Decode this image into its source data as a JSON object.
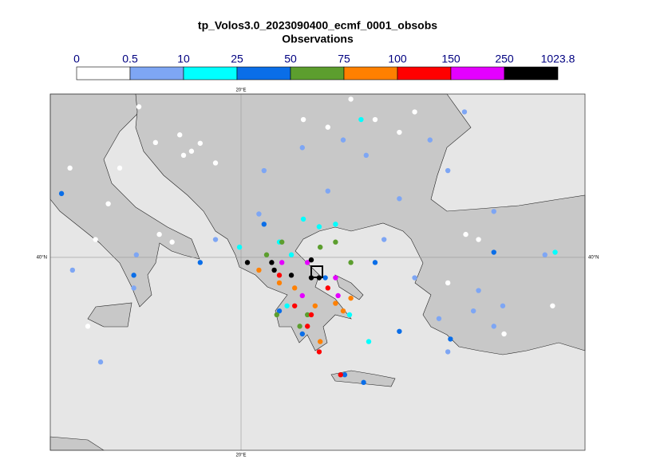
{
  "chart_data": {
    "type": "map",
    "title": "tp_Volos3.0_2023090400_ecmf_0001_obsobs",
    "subtitle": "Observations",
    "levels": [
      0,
      0.5,
      10,
      25,
      50,
      75,
      100,
      150,
      250,
      1023.8
    ],
    "colors": [
      "#ffffff",
      "#7ea6f4",
      "#00ffff",
      "#0a6ee8",
      "#5c9e2e",
      "#ff8000",
      "#ff0000",
      "#e400ff",
      "#000000"
    ],
    "xlim": [
      12.53,
      33.47
    ],
    "ylim": [
      32.44,
      46.4
    ],
    "xticks": [
      {
        "value": 20,
        "label": "20°E"
      }
    ],
    "yticks": [
      {
        "value": 40,
        "label": "40°N"
      }
    ],
    "grid": true,
    "stations": {
      "lon": [
        17.6,
        18.06,
        17.75,
        18.4,
        19.0,
        22.44,
        23.4,
        25.25,
        26.2,
        24.3,
        26.8,
        16.0,
        15.25,
        16.8,
        17.3,
        14.8,
        14.3,
        32.2,
        28.1,
        29.3,
        28.8,
        30.3,
        14.0,
        13.3,
        16.65,
        20.9,
        23.4,
        24.9,
        26.2,
        27.4,
        28.1,
        29.9,
        31.9,
        26.8,
        27.75,
        29.3,
        29.1,
        30.25,
        28.1,
        29.9,
        15.8,
        14.5,
        15.9,
        13.4,
        24.0,
        22.4,
        20.7,
        19.0,
        25.6,
        28.75,
        22.44,
        23.06,
        23.7,
        21.5,
        21.97,
        19.94,
        25.0,
        32.3,
        24.7,
        24.25,
        23.9,
        21.8,
        12.97,
        15.8,
        18.4,
        29.9,
        26.2,
        28.2,
        25.25,
        21.5,
        22.4,
        24.06,
        24.8,
        23.3,
        20.9,
        23.7,
        23.1,
        21.6,
        22.6,
        22.3,
        21.4,
        21.0,
        24.3,
        20.7,
        21.5,
        22.9,
        23.7,
        24.0,
        23.1,
        24.3,
        22.1,
        22.1,
        22.75,
        22.6,
        23.06,
        23.4,
        21.5,
        23.9,
        21.6,
        22.6,
        23.7,
        23.8,
        22.4,
        21.2,
        21.3,
        21.97,
        22.75,
        23.06,
        22.75,
        20.25
      ],
      "lat": [
        44.8,
        44.16,
        44.0,
        44.47,
        43.7,
        45.4,
        45.1,
        45.4,
        44.9,
        46.2,
        45.7,
        45.9,
        43.5,
        40.9,
        40.6,
        42.1,
        40.7,
        38.1,
        39.0,
        40.7,
        40.9,
        37.0,
        37.3,
        43.5,
        44.5,
        43.4,
        42.6,
        44.0,
        42.3,
        44.6,
        43.4,
        41.8,
        40.1,
        39.2,
        37.6,
        38.7,
        37.9,
        38.1,
        36.3,
        37.3,
        38.8,
        35.9,
        40.1,
        39.5,
        44.6,
        44.3,
        41.7,
        40.7,
        40.7,
        45.7,
        41.5,
        41.2,
        41.3,
        40.6,
        40.1,
        40.4,
        36.7,
        40.2,
        45.4,
        37.75,
        35.4,
        38.1,
        42.5,
        39.3,
        39.8,
        40.2,
        37.1,
        36.8,
        39.8,
        37.9,
        37.0,
        35.4,
        35.1,
        39.2,
        41.3,
        40.6,
        40.4,
        40.6,
        37.75,
        37.3,
        37.75,
        40.1,
        39.8,
        39.5,
        39.0,
        38.1,
        38.2,
        37.9,
        36.7,
        38.4,
        38.8,
        38.1,
        37.75,
        37.3,
        36.3,
        38.8,
        39.3,
        35.4,
        39.8,
        39.8,
        39.2,
        38.5,
        38.5,
        39.8,
        39.5,
        39.3,
        39.9,
        39.2,
        39.2,
        39.8
      ],
      "values": [
        0.2,
        0.2,
        0.2,
        0.2,
        0.2,
        0.2,
        0.2,
        0.2,
        0.2,
        0.2,
        0.2,
        0.2,
        0.2,
        0.2,
        0.2,
        0.2,
        0.2,
        0.2,
        0.2,
        0.2,
        0.2,
        0.2,
        0.2,
        0.2,
        0.2,
        5,
        5,
        5,
        5,
        5,
        5,
        5,
        5,
        5,
        5,
        5,
        5,
        5,
        5,
        5,
        5,
        5,
        5,
        5,
        5,
        5,
        5,
        5,
        5,
        5,
        15,
        15,
        15,
        15,
        15,
        15,
        15,
        15,
        15,
        15,
        15,
        15,
        35,
        35,
        35,
        35,
        35,
        35,
        35,
        35,
        35,
        35,
        35,
        35,
        35,
        60,
        60,
        60,
        60,
        60,
        60,
        60,
        60,
        85,
        85,
        85,
        85,
        85,
        85,
        85,
        85,
        120,
        120,
        120,
        120,
        120,
        120,
        120,
        200,
        200,
        200,
        200,
        200,
        400,
        400,
        400,
        400,
        400,
        400,
        400
      ]
    }
  }
}
